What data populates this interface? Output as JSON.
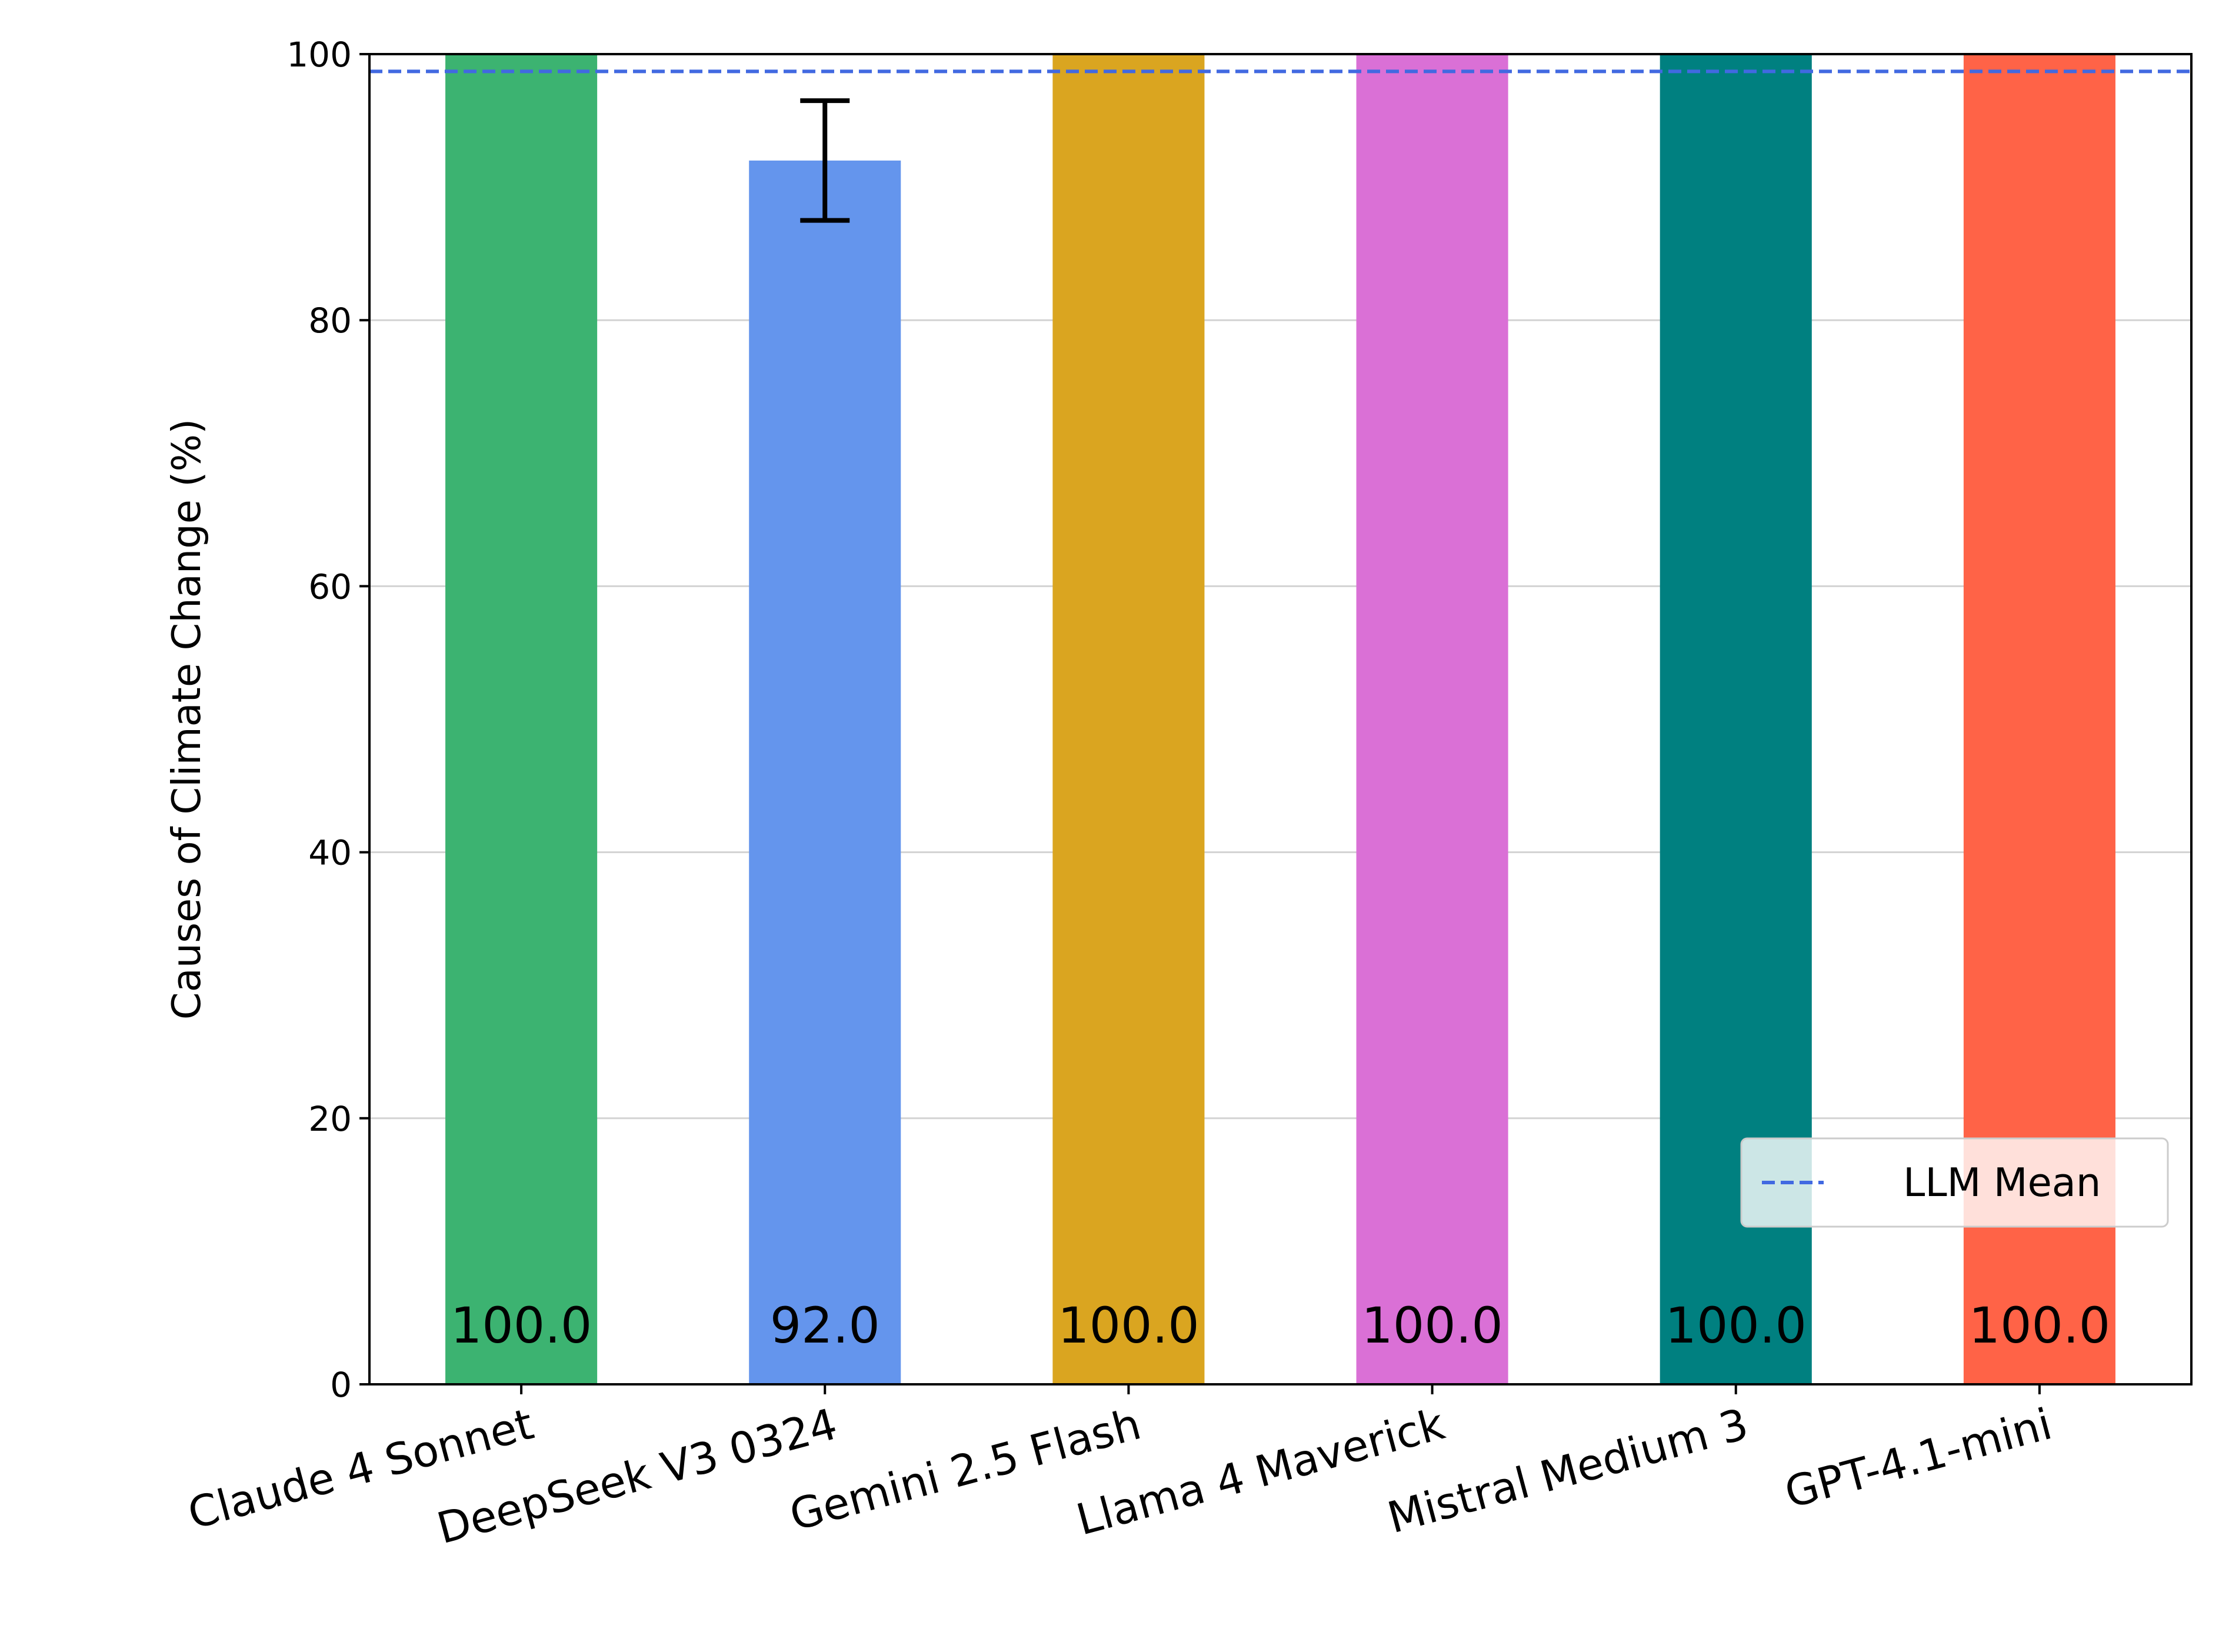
{
  "chart_data": {
    "type": "bar",
    "categories": [
      "Claude 4 Sonnet",
      "DeepSeek V3 0324",
      "Gemini 2.5 Flash",
      "Llama 4 Maverick",
      "Mistral Medium 3",
      "GPT-4.1-mini"
    ],
    "values": [
      100.0,
      92.0,
      100.0,
      100.0,
      100.0,
      100.0
    ],
    "value_labels": [
      "100.0",
      "92.0",
      "100.0",
      "100.0",
      "100.0",
      "100.0"
    ],
    "error_bars": [
      {
        "low": 100.0,
        "high": 100.0
      },
      {
        "low": 87.5,
        "high": 96.5
      },
      {
        "low": 100.0,
        "high": 100.0
      },
      {
        "low": 100.0,
        "high": 100.0
      },
      {
        "low": 100.0,
        "high": 100.0
      },
      {
        "low": 100.0,
        "high": 100.0
      }
    ],
    "colors": [
      "#3cb371",
      "#6495ed",
      "#daa520",
      "#da70d6",
      "#008080",
      "#ff6347"
    ],
    "ylabel": "Causes of Climate Change (%)",
    "xlabel": "",
    "ylim": [
      0,
      100
    ],
    "yticks": [
      0,
      20,
      40,
      60,
      80,
      100
    ],
    "ytick_labels": [
      "0",
      "20",
      "40",
      "60",
      "80",
      "100"
    ],
    "grid": "horizontal",
    "reference_line": {
      "name": "LLM Mean",
      "value": 98.7,
      "color": "#4169e1",
      "style": "dashed"
    },
    "legend": {
      "position": "lower-right",
      "entries": [
        "LLM Mean"
      ]
    }
  }
}
